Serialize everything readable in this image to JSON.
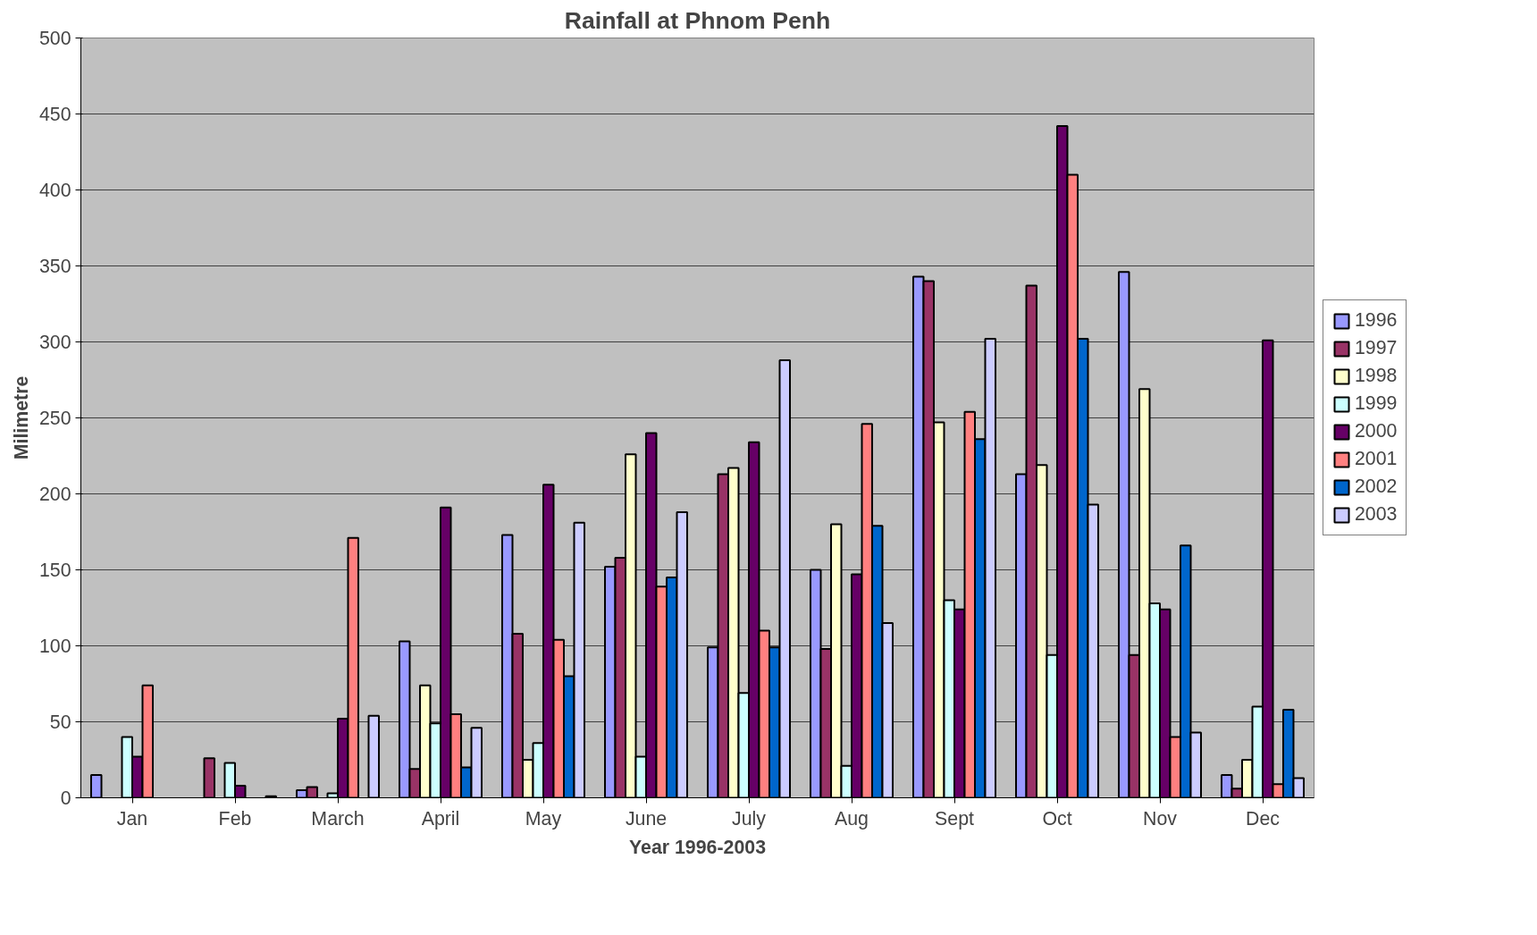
{
  "chart_data": {
    "type": "bar",
    "title": "Rainfall at Phnom Penh",
    "xlabel": "Year 1996-2003",
    "ylabel": "Milimetre",
    "categories": [
      "Jan",
      "Feb",
      "March",
      "April",
      "May",
      "June",
      "July",
      "Aug",
      "Sept",
      "Oct",
      "Nov",
      "Dec"
    ],
    "ylim": [
      0,
      500
    ],
    "yticks": [
      0,
      50,
      100,
      150,
      200,
      250,
      300,
      350,
      400,
      450,
      500
    ],
    "grid": "y",
    "legend": "right",
    "series": [
      {
        "name": "1996",
        "color": "#9999ff",
        "values": [
          15,
          null,
          5,
          103,
          173,
          152,
          99,
          150,
          343,
          213,
          346,
          15
        ]
      },
      {
        "name": "1997",
        "color": "#993366",
        "values": [
          null,
          26,
          7,
          19,
          108,
          158,
          213,
          98,
          340,
          337,
          94,
          6
        ]
      },
      {
        "name": "1998",
        "color": "#ffffcc",
        "values": [
          null,
          null,
          null,
          74,
          25,
          226,
          217,
          180,
          247,
          219,
          269,
          25
        ]
      },
      {
        "name": "1999",
        "color": "#ccffff",
        "values": [
          40,
          23,
          3,
          49,
          36,
          27,
          69,
          21,
          130,
          94,
          128,
          60
        ]
      },
      {
        "name": "2000",
        "color": "#660066",
        "values": [
          27,
          8,
          52,
          191,
          206,
          240,
          234,
          147,
          124,
          442,
          124,
          301
        ]
      },
      {
        "name": "2001",
        "color": "#ff8080",
        "values": [
          74,
          null,
          171,
          55,
          104,
          139,
          110,
          246,
          254,
          410,
          40,
          9
        ]
      },
      {
        "name": "2002",
        "color": "#0066cc",
        "values": [
          null,
          null,
          null,
          20,
          80,
          145,
          99,
          179,
          236,
          302,
          166,
          58
        ]
      },
      {
        "name": "2003",
        "color": "#ccccff",
        "values": [
          null,
          1,
          54,
          46,
          181,
          188,
          288,
          115,
          302,
          193,
          43,
          13
        ]
      }
    ]
  }
}
